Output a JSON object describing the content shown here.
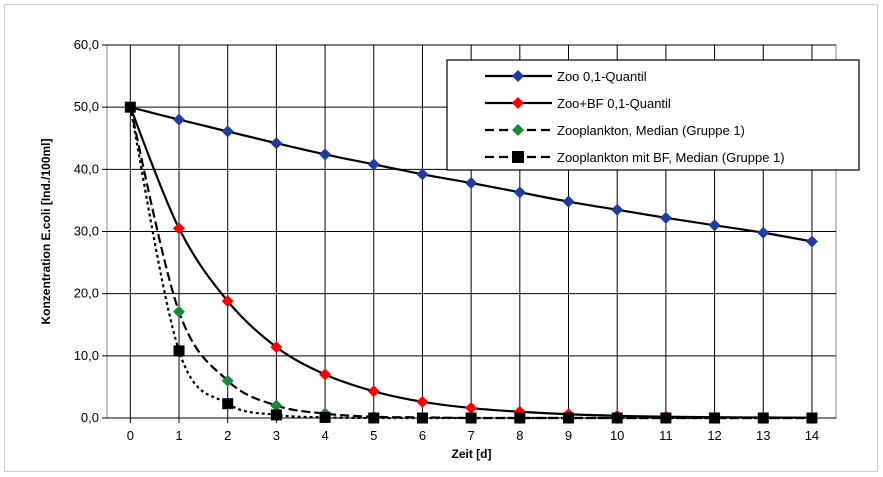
{
  "chart_data": {
    "type": "line",
    "title": "",
    "xlabel": "Zeit [d]",
    "ylabel": "Konzentration E.coli [Ind./100ml]",
    "xlim": [
      0,
      14
    ],
    "ylim": [
      0,
      60
    ],
    "x": [
      0,
      1,
      2,
      3,
      4,
      5,
      6,
      7,
      8,
      9,
      10,
      11,
      12,
      13,
      14
    ],
    "x_tick_labels": [
      "0",
      "1",
      "2",
      "3",
      "4",
      "5",
      "6",
      "7",
      "8",
      "9",
      "10",
      "11",
      "12",
      "13",
      "14"
    ],
    "y_ticks": [
      0,
      10,
      20,
      30,
      40,
      50,
      60
    ],
    "y_tick_labels": [
      "0,0",
      "10,0",
      "20,0",
      "30,0",
      "40,0",
      "50,0",
      "60,0"
    ],
    "grid": "vertical and horizontal",
    "legend_position": "top-right",
    "series": [
      {
        "name": "Zoo 0,1-Quantil",
        "color": "#1f3c9e",
        "marker": "diamond",
        "line": "solid",
        "values": [
          50.0,
          48.0,
          46.1,
          44.2,
          42.4,
          40.8,
          39.2,
          37.8,
          36.3,
          34.8,
          33.5,
          32.2,
          31.0,
          29.8,
          28.4
        ]
      },
      {
        "name": "Zoo+BF 0,1-Quantil",
        "color": "#ff0000",
        "marker": "diamond",
        "line": "solid",
        "values": [
          50.0,
          30.5,
          18.8,
          11.4,
          7.0,
          4.3,
          2.6,
          1.6,
          1.0,
          0.6,
          0.35,
          0.2,
          0.12,
          0.08,
          0.05
        ]
      },
      {
        "name": "Zooplankton, Median (Gruppe 1)",
        "color": "#1a8a3a",
        "marker": "diamond",
        "line": "dash",
        "values": [
          50.0,
          17.1,
          6.0,
          2.0,
          0.7,
          0.2,
          0.1,
          0.0,
          0.0,
          0.0,
          0.0,
          0.0,
          0.0,
          0.0,
          0.0
        ]
      },
      {
        "name": "Zooplankton mit BF, Median (Gruppe 1)",
        "color": "#000000",
        "marker": "square",
        "line": "dash",
        "values": [
          50.0,
          10.8,
          2.3,
          0.5,
          0.1,
          0.0,
          0.0,
          0.0,
          0.0,
          0.0,
          0.0,
          0.0,
          0.0,
          0.0,
          0.0
        ]
      }
    ]
  }
}
